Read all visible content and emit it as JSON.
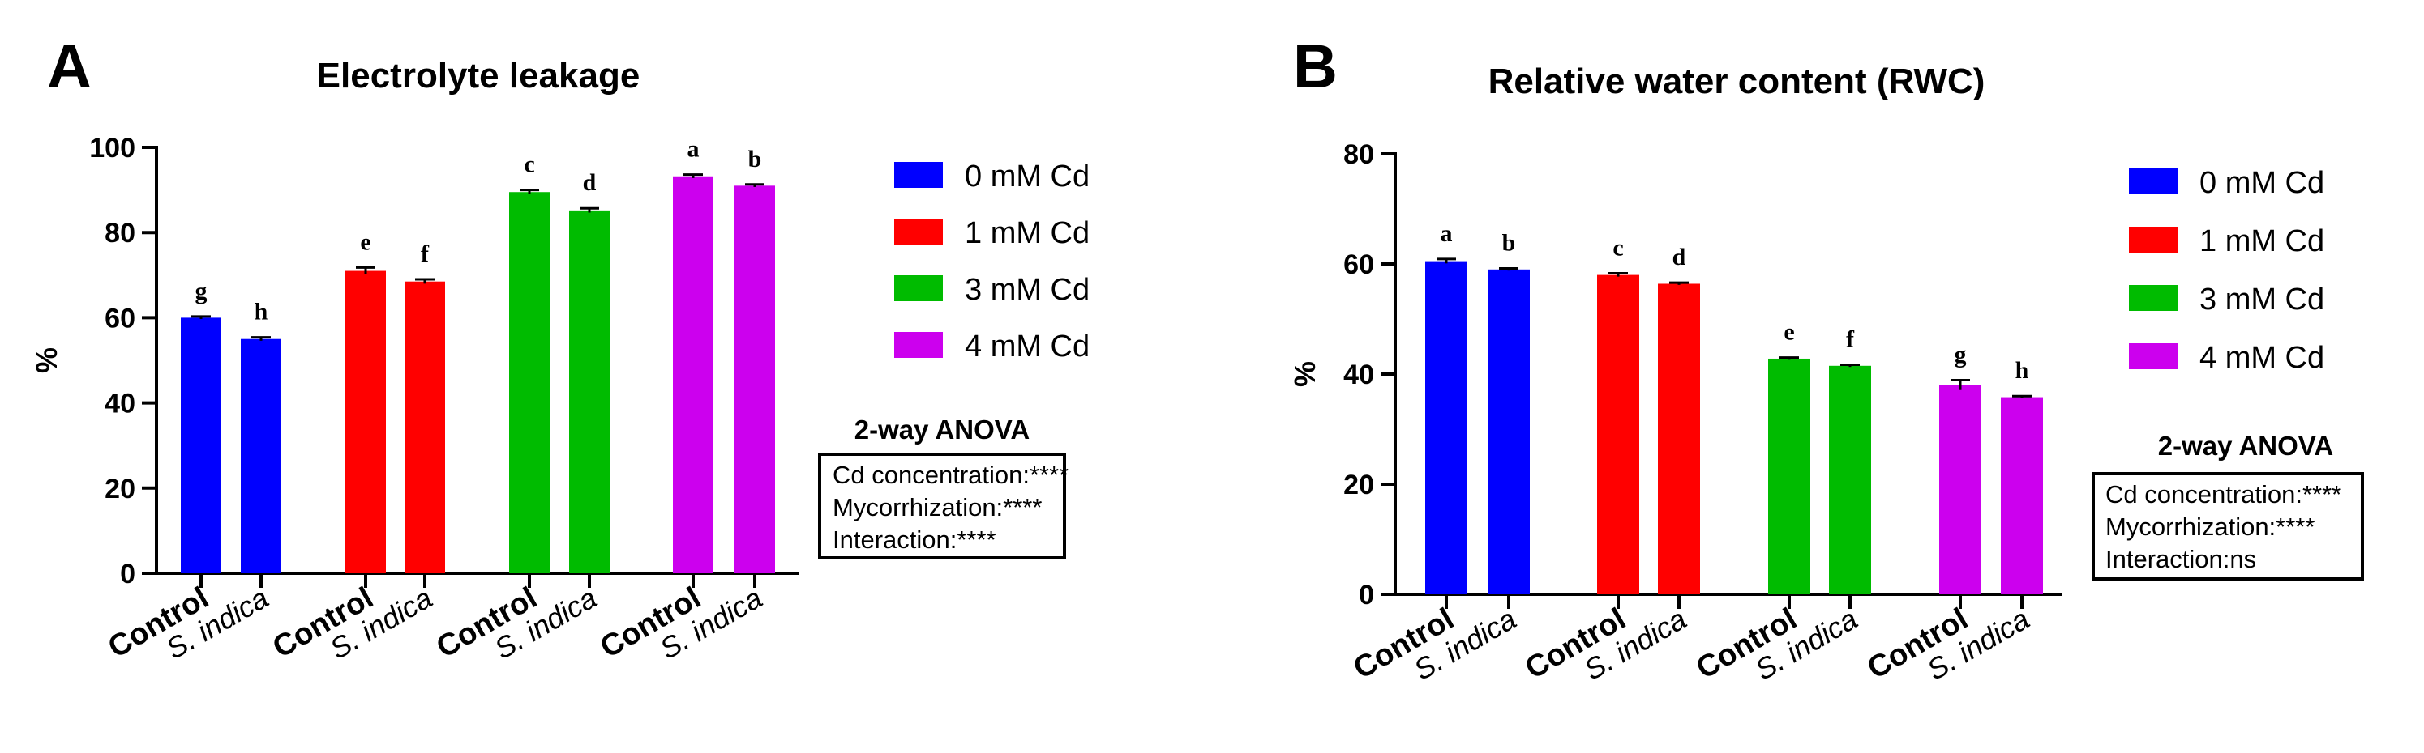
{
  "panels": [
    {
      "letter": "A",
      "legend": [
        "0 mM Cd",
        "1 mM Cd",
        "3 mM Cd",
        "4 mM Cd"
      ],
      "anova": {
        "title": "2-way ANOVA",
        "lines": [
          "Cd concentration:****",
          "Mycorrhization:****",
          "Interaction:****"
        ]
      }
    },
    {
      "letter": "B",
      "legend": [
        "0 mM Cd",
        "1 mM Cd",
        "3 mM Cd",
        "4 mM Cd"
      ],
      "anova": {
        "title": "2-way ANOVA",
        "lines": [
          "Cd concentration:****",
          "Mycorrhization:****",
          "Interaction:ns"
        ]
      }
    }
  ],
  "colors": [
    "#0000ff",
    "#ff0000",
    "#00bb00",
    "#cc00ee"
  ],
  "chart_data": [
    {
      "type": "bar",
      "title": "Electrolyte leakage",
      "xlabel": "",
      "ylabel": "%",
      "ylim": [
        0,
        100
      ],
      "yticks": [
        0,
        20,
        40,
        60,
        80,
        100
      ],
      "categories": [
        "Control",
        "S. indica",
        "Control",
        "S. indica",
        "Control",
        "S. indica",
        "Control",
        "S. indica"
      ],
      "groups": [
        "0 mM Cd",
        "0 mM Cd",
        "1 mM Cd",
        "1 mM Cd",
        "3 mM Cd",
        "3 mM Cd",
        "4 mM Cd",
        "4 mM Cd"
      ],
      "values": [
        60,
        55,
        71,
        68.5,
        89.5,
        85.2,
        93.2,
        91
      ],
      "errors": [
        0.3,
        0.4,
        0.8,
        0.5,
        0.5,
        0.5,
        0.4,
        0.3
      ],
      "letters": [
        "g",
        "h",
        "e",
        "f",
        "c",
        "d",
        "a",
        "b"
      ]
    },
    {
      "type": "bar",
      "title": "Relative water content (RWC)",
      "xlabel": "",
      "ylabel": "%",
      "ylim": [
        0,
        80
      ],
      "yticks": [
        0,
        20,
        40,
        60,
        80
      ],
      "categories": [
        "Control",
        "S. indica",
        "Control",
        "S. indica",
        "Control",
        "S. indica",
        "Control",
        "S. indica"
      ],
      "groups": [
        "0 mM Cd",
        "0 mM Cd",
        "1 mM Cd",
        "1 mM Cd",
        "3 mM Cd",
        "3 mM Cd",
        "4 mM Cd",
        "4 mM Cd"
      ],
      "values": [
        60.5,
        59,
        58,
        56.4,
        42.8,
        41.5,
        38,
        35.8
      ],
      "errors": [
        0.4,
        0.2,
        0.3,
        0.2,
        0.2,
        0.2,
        0.9,
        0.2
      ],
      "letters": [
        "a",
        "b",
        "c",
        "d",
        "e",
        "f",
        "g",
        "h"
      ]
    }
  ]
}
